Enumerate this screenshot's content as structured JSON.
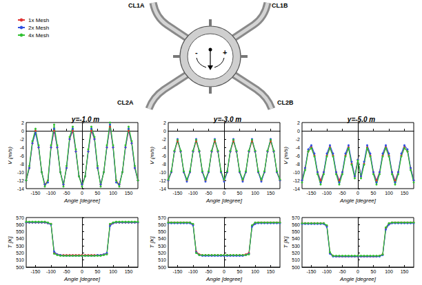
{
  "diagram": {
    "labels": [
      "CL1A",
      "CL1B",
      "CL2A",
      "CL2B"
    ],
    "signs": [
      "-",
      "+"
    ]
  },
  "chart_data": [
    {
      "type": "line",
      "title": "y=-1.0 m",
      "x_label": "Angle [degree]",
      "y_label": "V (m/s)",
      "marker": "circle",
      "line_style": "solid",
      "grid": false,
      "legend": "upper left",
      "x": [
        -180,
        -170,
        -160,
        -150,
        -140,
        -130,
        -120,
        -110,
        -100,
        -90,
        -80,
        -70,
        -60,
        -50,
        -40,
        -30,
        -20,
        -10,
        0,
        10,
        20,
        30,
        40,
        50,
        60,
        70,
        80,
        90,
        100,
        110,
        120,
        130,
        140,
        150,
        160,
        170,
        180
      ],
      "xlim": [
        -180,
        180
      ],
      "xticks": [
        -150,
        -100,
        -50,
        0,
        50,
        100,
        150
      ],
      "ylim": [
        -14,
        2
      ],
      "yticks": [
        -14,
        -12,
        -10,
        -8,
        -6,
        -4,
        -2,
        0,
        2
      ],
      "series": [
        {
          "name": "1x Mesh",
          "color": "#e03030",
          "values": [
            -12,
            -9,
            -3,
            0,
            -4,
            -10,
            -13,
            -12,
            -4,
            0,
            -4,
            -10,
            -13,
            -9,
            -2,
            0,
            -5,
            -11,
            -13,
            -11,
            -5,
            0,
            -2,
            -9,
            -13,
            -10,
            -4,
            1,
            -4,
            -12,
            -13,
            -10,
            -4,
            0,
            -3,
            -9,
            -12
          ]
        },
        {
          "name": "2x Mesh",
          "color": "#3050e0",
          "values": [
            -12,
            -9,
            -3,
            -0.5,
            -4,
            -10,
            -13,
            -12.5,
            -4,
            0.5,
            -4,
            -10,
            -13,
            -9,
            -2,
            0.5,
            -5,
            -11,
            -13,
            -11,
            -5,
            0.5,
            -2,
            -9,
            -13,
            -10,
            -4,
            1.5,
            -4,
            -12.5,
            -13,
            -10,
            -4,
            0.5,
            -3,
            -9,
            -12
          ]
        },
        {
          "name": "4x Mesh",
          "color": "#30c030",
          "values": [
            -12,
            -8.5,
            -2.5,
            0.5,
            -3.5,
            -10,
            -13.5,
            -12,
            -3.5,
            1.5,
            -3.5,
            -10,
            -13.5,
            -8.5,
            -1.5,
            1,
            -4.5,
            -11,
            -13.5,
            -11,
            -4.5,
            1,
            -1.5,
            -8.5,
            -13.5,
            -10,
            -3.5,
            2,
            -3.5,
            -12,
            -13.5,
            -10,
            -3.5,
            1,
            -2.5,
            -8.5,
            -12
          ]
        }
      ]
    },
    {
      "type": "line",
      "title": "y=-3.0 m",
      "x_label": "Angle [degree]",
      "y_label": "V (m/s)",
      "marker": "circle",
      "line_style": "solid",
      "grid": false,
      "x": [
        -180,
        -170,
        -160,
        -150,
        -140,
        -130,
        -120,
        -110,
        -100,
        -90,
        -80,
        -70,
        -60,
        -50,
        -40,
        -30,
        -20,
        -10,
        0,
        10,
        20,
        30,
        40,
        50,
        60,
        70,
        80,
        90,
        100,
        110,
        120,
        130,
        140,
        150,
        160,
        170,
        180
      ],
      "xlim": [
        -180,
        180
      ],
      "xticks": [
        -150,
        -100,
        -50,
        0,
        50,
        100,
        150
      ],
      "ylim": [
        -14,
        2
      ],
      "yticks": [
        -14,
        -12,
        -10,
        -8,
        -6,
        -4,
        -2,
        0,
        2
      ],
      "series": [
        {
          "name": "1x Mesh",
          "color": "#e03030",
          "values": [
            -12,
            -10,
            -5,
            -2.5,
            -5,
            -10,
            -12,
            -10,
            -5,
            -2.5,
            -5,
            -10,
            -12,
            -10,
            -5,
            -2.5,
            -5,
            -10,
            -12,
            -10,
            -5,
            -2.5,
            -5,
            -10,
            -12,
            -10,
            -5,
            -2.5,
            -5,
            -10,
            -12,
            -10,
            -5,
            -2.5,
            -5,
            -10,
            -12
          ]
        },
        {
          "name": "2x Mesh",
          "color": "#3050e0",
          "values": [
            -12,
            -10,
            -5,
            -2,
            -5,
            -10,
            -12.3,
            -10,
            -5,
            -2,
            -5,
            -10,
            -12.3,
            -10,
            -5,
            -2,
            -5,
            -10,
            -12.3,
            -10,
            -5,
            -2,
            -5,
            -10,
            -12.3,
            -10,
            -5,
            -2,
            -5,
            -10,
            -12.3,
            -10,
            -5,
            -2,
            -5,
            -10,
            -12
          ]
        },
        {
          "name": "4x Mesh",
          "color": "#30c030",
          "values": [
            -11.8,
            -9.8,
            -4.8,
            -2.2,
            -4.8,
            -9.8,
            -11.8,
            -9.8,
            -4.8,
            -2.2,
            -4.8,
            -9.8,
            -11.8,
            -9.8,
            -4.8,
            -2.2,
            -4.8,
            -9.8,
            -11.8,
            -9.8,
            -4.8,
            -2.2,
            -4.8,
            -9.8,
            -11.8,
            -9.8,
            -4.8,
            -2.2,
            -4.8,
            -9.8,
            -11.8,
            -9.8,
            -4.8,
            -2.2,
            -4.8,
            -9.8,
            -11.8
          ]
        }
      ]
    },
    {
      "type": "line",
      "title": "y=-5.0 m",
      "x_label": "Angle [degree]",
      "y_label": "V (m/s)",
      "marker": "circle",
      "line_style": "solid",
      "grid": false,
      "x": [
        -180,
        -170,
        -160,
        -150,
        -140,
        -130,
        -120,
        -110,
        -100,
        -90,
        -80,
        -70,
        -60,
        -50,
        -40,
        -30,
        -20,
        -10,
        0,
        10,
        20,
        30,
        40,
        50,
        60,
        70,
        80,
        90,
        100,
        110,
        120,
        130,
        140,
        150,
        160,
        170,
        180
      ],
      "xlim": [
        -180,
        180
      ],
      "xticks": [
        -150,
        -100,
        -50,
        0,
        50,
        100,
        150
      ],
      "ylim": [
        -14,
        2
      ],
      "yticks": [
        -14,
        -12,
        -10,
        -8,
        -6,
        -4,
        -2,
        0,
        2
      ],
      "series": [
        {
          "name": "1x Mesh",
          "color": "#e03030",
          "values": [
            -12,
            -9,
            -5,
            -4,
            -6,
            -10,
            -12,
            -10,
            -6,
            -4,
            -6,
            -10,
            -12,
            -10,
            -6,
            -4,
            -8,
            -11,
            -7,
            -11,
            -8,
            -4,
            -6,
            -10,
            -12,
            -10,
            -6,
            -4,
            -6,
            -10,
            -12,
            -10,
            -6,
            -4,
            -5,
            -9,
            -12
          ]
        },
        {
          "name": "2x Mesh",
          "color": "#3050e0",
          "values": [
            -12,
            -9,
            -4.5,
            -3.5,
            -5.5,
            -10,
            -12.5,
            -10,
            -5.5,
            -3.5,
            -5.5,
            -10,
            -12.5,
            -10,
            -5.5,
            -3.5,
            -7.5,
            -11,
            -7,
            -11,
            -7.5,
            -3.5,
            -5.5,
            -10,
            -12.5,
            -10,
            -5.5,
            -3.5,
            -5.5,
            -10,
            -12.5,
            -10,
            -5.5,
            -3.5,
            -4.5,
            -9,
            -12
          ]
        },
        {
          "name": "4x Mesh",
          "color": "#30c030",
          "values": [
            -12.5,
            -9.5,
            -5,
            -4.2,
            -6.2,
            -10.5,
            -13,
            -10.5,
            -6.2,
            -4.2,
            -6.2,
            -10.5,
            -13,
            -10.5,
            -6.2,
            -4.2,
            -8.2,
            -11.5,
            -7.2,
            -11.5,
            -8.2,
            -4.2,
            -6.2,
            -10.5,
            -13,
            -10.5,
            -6.2,
            -4.2,
            -6.2,
            -10.5,
            -13,
            -10.5,
            -6.2,
            -4.2,
            -5,
            -9.5,
            -12.5
          ]
        }
      ]
    },
    {
      "type": "line",
      "x_label": "Angle [degree]",
      "y_label": "T [K]",
      "marker": "circle",
      "line_style": "solid",
      "grid": false,
      "x": [
        -180,
        -170,
        -160,
        -150,
        -140,
        -130,
        -120,
        -110,
        -100,
        -90,
        -80,
        -70,
        -60,
        -50,
        -40,
        -30,
        -20,
        -10,
        0,
        10,
        20,
        30,
        40,
        50,
        60,
        70,
        80,
        90,
        100,
        110,
        120,
        130,
        140,
        150,
        160,
        170,
        180
      ],
      "xlim": [
        -180,
        180
      ],
      "xticks": [
        -150,
        -100,
        -50,
        0,
        50,
        100,
        150
      ],
      "ylim": [
        500,
        570
      ],
      "yticks": [
        500,
        510,
        520,
        530,
        540,
        550,
        560,
        570
      ],
      "series": [
        {
          "name": "1x Mesh",
          "color": "#e03030",
          "values": [
            563,
            563,
            563,
            563,
            563,
            563,
            563,
            562,
            561,
            520,
            518,
            517,
            517,
            517,
            517,
            517,
            517,
            517,
            517,
            517,
            517,
            517,
            517,
            517,
            517,
            518,
            519,
            560,
            562,
            563,
            563,
            563,
            563,
            563,
            563,
            563,
            563
          ]
        },
        {
          "name": "2x Mesh",
          "color": "#3050e0",
          "values": [
            563,
            563,
            563,
            563,
            563,
            563,
            563,
            562,
            560,
            522,
            518,
            517,
            516,
            516,
            516,
            516,
            516,
            516,
            516,
            516,
            516,
            516,
            516,
            517,
            517,
            518,
            520,
            558,
            562,
            563,
            563,
            563,
            563,
            563,
            563,
            563,
            563
          ]
        },
        {
          "name": "4x Mesh",
          "color": "#30c030",
          "values": [
            564,
            564,
            564,
            564,
            564,
            564,
            564,
            563,
            561,
            519,
            517,
            516,
            516,
            516,
            516,
            516,
            516,
            516,
            516,
            516,
            516,
            516,
            516,
            516,
            516,
            517,
            518,
            561,
            563,
            564,
            564,
            564,
            564,
            564,
            564,
            564,
            564
          ]
        }
      ]
    },
    {
      "type": "line",
      "x_label": "Angle [degree]",
      "y_label": "T [K]",
      "marker": "circle",
      "line_style": "solid",
      "grid": false,
      "x": [
        -180,
        -170,
        -160,
        -150,
        -140,
        -130,
        -120,
        -110,
        -100,
        -90,
        -80,
        -70,
        -60,
        -50,
        -40,
        -30,
        -20,
        -10,
        0,
        10,
        20,
        30,
        40,
        50,
        60,
        70,
        80,
        90,
        100,
        110,
        120,
        130,
        140,
        150,
        160,
        170,
        180
      ],
      "xlim": [
        -180,
        180
      ],
      "xticks": [
        -150,
        -100,
        -50,
        0,
        50,
        100,
        150
      ],
      "ylim": [
        500,
        570
      ],
      "yticks": [
        500,
        510,
        520,
        530,
        540,
        550,
        560,
        570
      ],
      "series": [
        {
          "name": "1x Mesh",
          "color": "#e03030",
          "values": [
            563,
            563,
            563,
            563,
            563,
            563,
            563,
            563,
            560,
            522,
            518,
            517,
            517,
            517,
            517,
            517,
            517,
            517,
            517,
            517,
            517,
            517,
            517,
            517,
            517,
            518,
            520,
            558,
            562,
            563,
            563,
            563,
            563,
            563,
            563,
            563,
            563
          ]
        },
        {
          "name": "2x Mesh",
          "color": "#3050e0",
          "values": [
            562,
            562,
            562,
            562,
            562,
            562,
            562,
            562,
            559,
            521,
            517,
            516,
            516,
            516,
            516,
            516,
            516,
            516,
            516,
            516,
            516,
            516,
            516,
            516,
            516,
            517,
            519,
            557,
            561,
            562,
            562,
            562,
            562,
            562,
            562,
            562,
            562
          ]
        },
        {
          "name": "4x Mesh",
          "color": "#30c030",
          "values": [
            563,
            563,
            563,
            563,
            563,
            563,
            563,
            563,
            561,
            520,
            517,
            517,
            517,
            517,
            517,
            517,
            517,
            517,
            517,
            517,
            517,
            517,
            517,
            517,
            517,
            517,
            518,
            559,
            563,
            563,
            563,
            563,
            563,
            563,
            563,
            563,
            563
          ]
        }
      ]
    },
    {
      "type": "line",
      "x_label": "Angle [degree]",
      "y_label": "T [K]",
      "marker": "circle",
      "line_style": "solid",
      "grid": false,
      "x": [
        -180,
        -170,
        -160,
        -150,
        -140,
        -130,
        -120,
        -110,
        -100,
        -90,
        -80,
        -70,
        -60,
        -50,
        -40,
        -30,
        -20,
        -10,
        0,
        10,
        20,
        30,
        40,
        50,
        60,
        70,
        80,
        90,
        100,
        110,
        120,
        130,
        140,
        150,
        160,
        170,
        180
      ],
      "xlim": [
        -180,
        180
      ],
      "xticks": [
        -150,
        -100,
        -50,
        0,
        50,
        100,
        150
      ],
      "ylim": [
        500,
        570
      ],
      "yticks": [
        500,
        510,
        520,
        530,
        540,
        550,
        560,
        570
      ],
      "series": [
        {
          "name": "1x Mesh",
          "color": "#e03030",
          "values": [
            562,
            562,
            562,
            562,
            562,
            562,
            562,
            562,
            558,
            520,
            516,
            515,
            515,
            515,
            515,
            515,
            515,
            515,
            515,
            515,
            515,
            515,
            515,
            515,
            515,
            516,
            518,
            555,
            561,
            563,
            563,
            563,
            563,
            563,
            563,
            563,
            563
          ]
        },
        {
          "name": "2x Mesh",
          "color": "#3050e0",
          "values": [
            561,
            561,
            561,
            561,
            561,
            561,
            561,
            561,
            557,
            519,
            515,
            515,
            515,
            515,
            515,
            515,
            515,
            515,
            515,
            515,
            515,
            515,
            515,
            515,
            515,
            515,
            517,
            553,
            560,
            562,
            562,
            562,
            562,
            562,
            562,
            562,
            562
          ]
        },
        {
          "name": "4x Mesh",
          "color": "#30c030",
          "values": [
            562,
            562,
            562,
            562,
            562,
            562,
            562,
            562,
            559,
            521,
            516,
            516,
            516,
            516,
            516,
            516,
            516,
            516,
            516,
            516,
            516,
            516,
            516,
            516,
            516,
            516,
            518,
            556,
            562,
            563,
            563,
            563,
            563,
            563,
            563,
            563,
            563
          ]
        }
      ]
    }
  ]
}
